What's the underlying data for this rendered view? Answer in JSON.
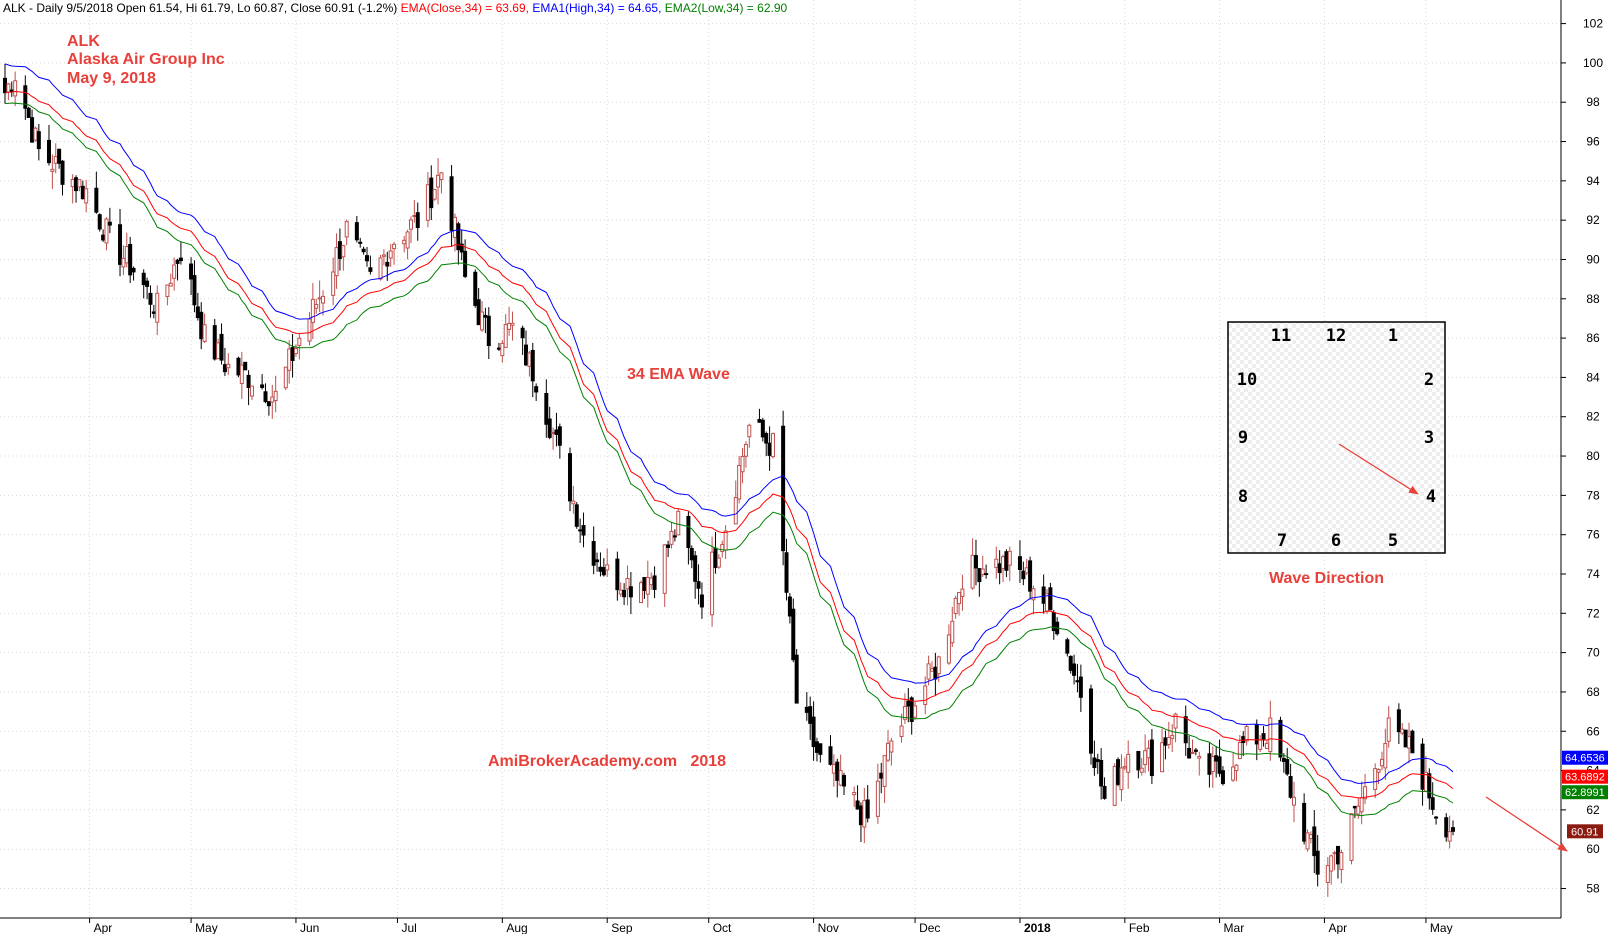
{
  "header": {
    "prefix": "ALK - Daily 9/5/2018 Open 61.54, Hi 61.79, Lo 60.87, Close 60.91 (-1.2%)",
    "ema_close": "EMA(Close,34) = 63.69,",
    "ema_high": "EMA1(High,34) = 64.65,",
    "ema_low": "EMA2(Low,34) = 62.90"
  },
  "title_lines": [
    "ALK",
    "Alaska Air Group Inc",
    "May 9, 2018"
  ],
  "annotations": {
    "wave_label": "34 EMA Wave",
    "watermark": "AmiBrokerAcademy.com   2018",
    "direction_label": "Wave Direction"
  },
  "clock": {
    "numbers": [
      "12",
      "1",
      "2",
      "3",
      "4",
      "5",
      "6",
      "7",
      "8",
      "9",
      "10",
      "11"
    ],
    "pointing_to": "4"
  },
  "colors": {
    "up_candle": "#c0504d",
    "down_candle": "#000000",
    "ema_close": "#ff0000",
    "ema_high": "#0000ff",
    "ema_low": "#008000",
    "label_red": "#e8403a",
    "grid": "#d9d9d9"
  },
  "price_tags": [
    {
      "series": "EMA1(High,34)",
      "value": "64.6536",
      "color": "#0000ff"
    },
    {
      "series": "EMA(Close,34)",
      "value": "63.6892",
      "color": "#ff0000"
    },
    {
      "series": "EMA2(Low,34)",
      "value": "62.8991",
      "color": "#008000"
    },
    {
      "series": "Close",
      "value": "60.91",
      "color": "#8b1a10"
    }
  ],
  "chart_data": {
    "type": "candlestick",
    "ylim": [
      56.5,
      103.2
    ],
    "y_ticks": [
      58,
      60,
      62,
      64,
      66,
      68,
      70,
      72,
      74,
      76,
      78,
      80,
      82,
      84,
      86,
      88,
      90,
      92,
      94,
      96,
      98,
      100,
      102
    ],
    "x_ticks": [
      "Apr",
      "May",
      "Jun",
      "Jul",
      "Aug",
      "Sep",
      "Oct",
      "Nov",
      "Dec",
      "2018",
      "Feb",
      "Mar",
      "Apr",
      "May"
    ],
    "x_range": [
      "2017-03-07",
      "2018-05-09"
    ],
    "series": [
      {
        "name": "EMA(Close,34)",
        "last": 63.69
      },
      {
        "name": "EMA1(High,34)",
        "last": 64.65
      },
      {
        "name": "EMA2(Low,34)",
        "last": 62.9
      }
    ],
    "close_path": [
      [
        "2017-03-07",
        98.5
      ],
      [
        "2017-03-10",
        99.5
      ],
      [
        "2017-03-17",
        95.5
      ],
      [
        "2017-03-24",
        94.5
      ],
      [
        "2017-03-31",
        93.5
      ],
      [
        "2017-04-07",
        91.0
      ],
      [
        "2017-04-14",
        89.5
      ],
      [
        "2017-04-21",
        87.5
      ],
      [
        "2017-04-28",
        90.5
      ],
      [
        "2017-05-05",
        86.0
      ],
      [
        "2017-05-12",
        84.5
      ],
      [
        "2017-05-19",
        84.0
      ],
      [
        "2017-05-26",
        83.0
      ],
      [
        "2017-06-02",
        86.0
      ],
      [
        "2017-06-09",
        88.5
      ],
      [
        "2017-06-16",
        91.5
      ],
      [
        "2017-06-23",
        89.0
      ],
      [
        "2017-06-30",
        91.0
      ],
      [
        "2017-07-07",
        92.0
      ],
      [
        "2017-07-14",
        94.5
      ],
      [
        "2017-07-21",
        89.0
      ],
      [
        "2017-07-28",
        86.0
      ],
      [
        "2017-08-04",
        86.5
      ],
      [
        "2017-08-11",
        84.0
      ],
      [
        "2017-08-18",
        80.0
      ],
      [
        "2017-08-25",
        76.0
      ],
      [
        "2017-09-01",
        74.0
      ],
      [
        "2017-09-08",
        73.5
      ],
      [
        "2017-09-15",
        74.0
      ],
      [
        "2017-09-22",
        76.5
      ],
      [
        "2017-09-29",
        73.0
      ],
      [
        "2017-10-06",
        76.5
      ],
      [
        "2017-10-13",
        81.5
      ],
      [
        "2017-10-20",
        80.5
      ],
      [
        "2017-10-27",
        67.5
      ],
      [
        "2017-11-03",
        64.5
      ],
      [
        "2017-11-10",
        63.0
      ],
      [
        "2017-11-17",
        61.5
      ],
      [
        "2017-11-24",
        65.5
      ],
      [
        "2017-12-01",
        67.5
      ],
      [
        "2017-12-08",
        69.5
      ],
      [
        "2017-12-15",
        74.0
      ],
      [
        "2017-12-22",
        74.5
      ],
      [
        "2017-12-29",
        74.5
      ],
      [
        "2018-01-05",
        73.5
      ],
      [
        "2018-01-12",
        71.5
      ],
      [
        "2018-01-19",
        68.0
      ],
      [
        "2018-01-26",
        62.5
      ],
      [
        "2018-02-02",
        65.0
      ],
      [
        "2018-02-09",
        64.5
      ],
      [
        "2018-02-16",
        66.5
      ],
      [
        "2018-02-23",
        64.0
      ],
      [
        "2018-03-02",
        64.0
      ],
      [
        "2018-03-09",
        65.5
      ],
      [
        "2018-03-16",
        66.0
      ],
      [
        "2018-03-23",
        62.5
      ],
      [
        "2018-03-30",
        59.0
      ],
      [
        "2018-04-06",
        60.0
      ],
      [
        "2018-04-13",
        63.0
      ],
      [
        "2018-04-20",
        66.0
      ],
      [
        "2018-04-27",
        65.0
      ],
      [
        "2018-05-04",
        62.0
      ],
      [
        "2018-05-09",
        60.91
      ]
    ]
  }
}
